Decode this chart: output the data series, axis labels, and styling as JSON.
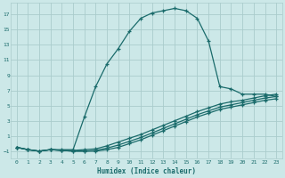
{
  "xlabel": "Humidex (Indice chaleur)",
  "ylabel": "",
  "bg_color": "#cce8e8",
  "grid_color": "#aacccc",
  "line_color": "#1a6b6b",
  "xlim": [
    -0.5,
    23.5
  ],
  "ylim": [
    -2.0,
    18.5
  ],
  "xticks": [
    0,
    1,
    2,
    3,
    4,
    5,
    6,
    7,
    8,
    9,
    10,
    11,
    12,
    13,
    14,
    15,
    16,
    17,
    18,
    19,
    20,
    21,
    22,
    23
  ],
  "yticks": [
    -1,
    1,
    3,
    5,
    7,
    9,
    11,
    13,
    15,
    17
  ],
  "curve1_x": [
    0,
    1,
    2,
    3,
    4,
    5,
    6,
    7,
    8,
    9,
    10,
    11,
    12,
    13,
    14,
    15,
    16,
    17,
    18,
    19,
    20,
    21,
    22,
    23
  ],
  "curve1_y": [
    -0.5,
    -0.8,
    -1.0,
    -0.8,
    -0.8,
    -0.8,
    3.5,
    7.5,
    10.5,
    12.5,
    14.8,
    16.5,
    17.2,
    17.5,
    17.8,
    17.5,
    16.5,
    13.5,
    7.5,
    7.2,
    6.5,
    6.5,
    6.5,
    6.2
  ],
  "curve2_x": [
    0,
    1,
    2,
    3,
    4,
    5,
    6,
    7,
    8,
    9,
    10,
    11,
    12,
    13,
    14,
    15,
    16,
    17,
    18,
    19,
    20,
    21,
    22,
    23
  ],
  "curve2_y": [
    -0.5,
    -0.8,
    -1.0,
    -0.8,
    -0.9,
    -0.9,
    -0.8,
    -0.7,
    -0.3,
    0.2,
    0.7,
    1.2,
    1.8,
    2.4,
    3.0,
    3.6,
    4.2,
    4.7,
    5.2,
    5.5,
    5.7,
    6.0,
    6.3,
    6.5
  ],
  "curve3_x": [
    0,
    1,
    2,
    3,
    4,
    5,
    6,
    7,
    8,
    9,
    10,
    11,
    12,
    13,
    14,
    15,
    16,
    17,
    18,
    19,
    20,
    21,
    22,
    23
  ],
  "curve3_y": [
    -0.5,
    -0.8,
    -1.0,
    -0.8,
    -0.9,
    -1.0,
    -1.0,
    -0.9,
    -0.6,
    -0.2,
    0.3,
    0.8,
    1.4,
    2.0,
    2.6,
    3.2,
    3.8,
    4.3,
    4.8,
    5.1,
    5.4,
    5.7,
    6.0,
    6.2
  ],
  "curve4_x": [
    0,
    1,
    2,
    3,
    4,
    5,
    6,
    7,
    8,
    9,
    10,
    11,
    12,
    13,
    14,
    15,
    16,
    17,
    18,
    19,
    20,
    21,
    22,
    23
  ],
  "curve4_y": [
    -0.5,
    -0.8,
    -1.0,
    -0.8,
    -0.9,
    -1.0,
    -1.0,
    -1.0,
    -0.8,
    -0.5,
    0.0,
    0.5,
    1.1,
    1.7,
    2.3,
    2.9,
    3.5,
    4.0,
    4.5,
    4.8,
    5.1,
    5.4,
    5.7,
    5.9
  ]
}
